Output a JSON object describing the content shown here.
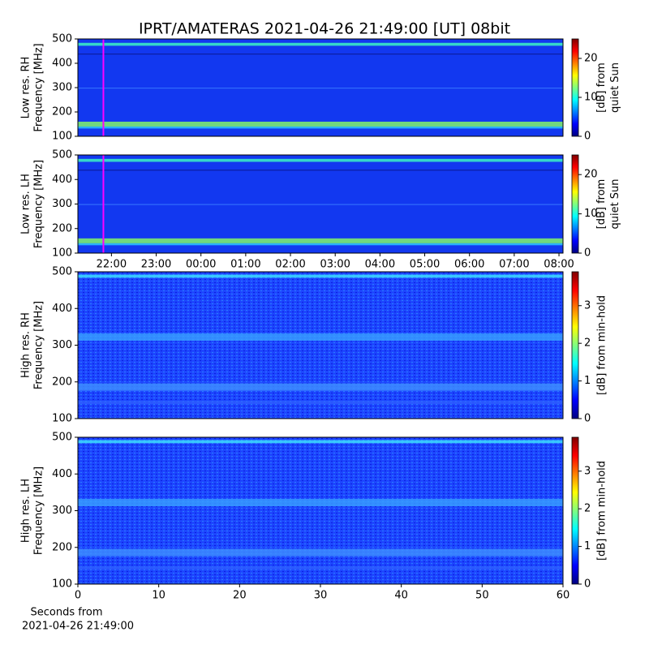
{
  "chart_data": [
    {
      "type": "heatmap",
      "title": "IPRT/AMATERAS 2021-04-26 21:49:00 [UT]   08bit",
      "ylabel": [
        "Low res. RH",
        "Frequency [MHz]"
      ],
      "ylim": [
        100,
        500
      ],
      "yticks": [
        100,
        200,
        300,
        400,
        500
      ],
      "xlim": [
        21.25,
        32.09
      ],
      "marker_x": 21.82,
      "marker_color": "#ff00ff",
      "colorbar_label": [
        "[dB] from",
        "quiet Sun"
      ],
      "clim": [
        0,
        25
      ],
      "cticks": [
        0,
        10,
        20
      ]
    },
    {
      "type": "heatmap",
      "ylabel": [
        "Low res. LH",
        "Frequency [MHz]"
      ],
      "ylim": [
        100,
        500
      ],
      "yticks": [
        100,
        200,
        300,
        400,
        500
      ],
      "xlim": [
        21.25,
        32.09
      ],
      "marker_x": 21.82,
      "marker_color": "#ff00ff",
      "xticks": [
        {
          "value": 22,
          "label": "22:00"
        },
        {
          "value": 23,
          "label": "23:00"
        },
        {
          "value": 24,
          "label": "00:00"
        },
        {
          "value": 25,
          "label": "01:00"
        },
        {
          "value": 26,
          "label": "02:00"
        },
        {
          "value": 27,
          "label": "03:00"
        },
        {
          "value": 28,
          "label": "04:00"
        },
        {
          "value": 29,
          "label": "05:00"
        },
        {
          "value": 30,
          "label": "06:00"
        },
        {
          "value": 31,
          "label": "07:00"
        },
        {
          "value": 32,
          "label": "08:00"
        }
      ],
      "colorbar_label": [
        "[dB] from",
        "quiet Sun"
      ],
      "clim": [
        0,
        25
      ],
      "cticks": [
        0,
        10,
        20
      ]
    },
    {
      "type": "heatmap",
      "ylabel": [
        "High res. RH",
        "Frequency [MHz]"
      ],
      "ylim": [
        100,
        500
      ],
      "yticks": [
        100,
        200,
        300,
        400,
        500
      ],
      "xlim": [
        0,
        60
      ],
      "colorbar_label": [
        "[dB] from min-hold"
      ],
      "clim": [
        0,
        3.9
      ],
      "cticks": [
        0,
        1,
        2,
        3
      ]
    },
    {
      "type": "heatmap",
      "ylabel": [
        "High res. LH",
        "Frequency [MHz]"
      ],
      "ylim": [
        100,
        500
      ],
      "yticks": [
        100,
        200,
        300,
        400,
        500
      ],
      "xlim": [
        0,
        60
      ],
      "xticks": [
        0,
        10,
        20,
        30,
        40,
        50,
        60
      ],
      "xlabel": [
        "Seconds from",
        "2021-04-26 21:49:00"
      ],
      "colorbar_label": [
        "[dB] from min-hold"
      ],
      "clim": [
        0,
        3.9
      ],
      "cticks": [
        0,
        1,
        2,
        3
      ]
    }
  ]
}
